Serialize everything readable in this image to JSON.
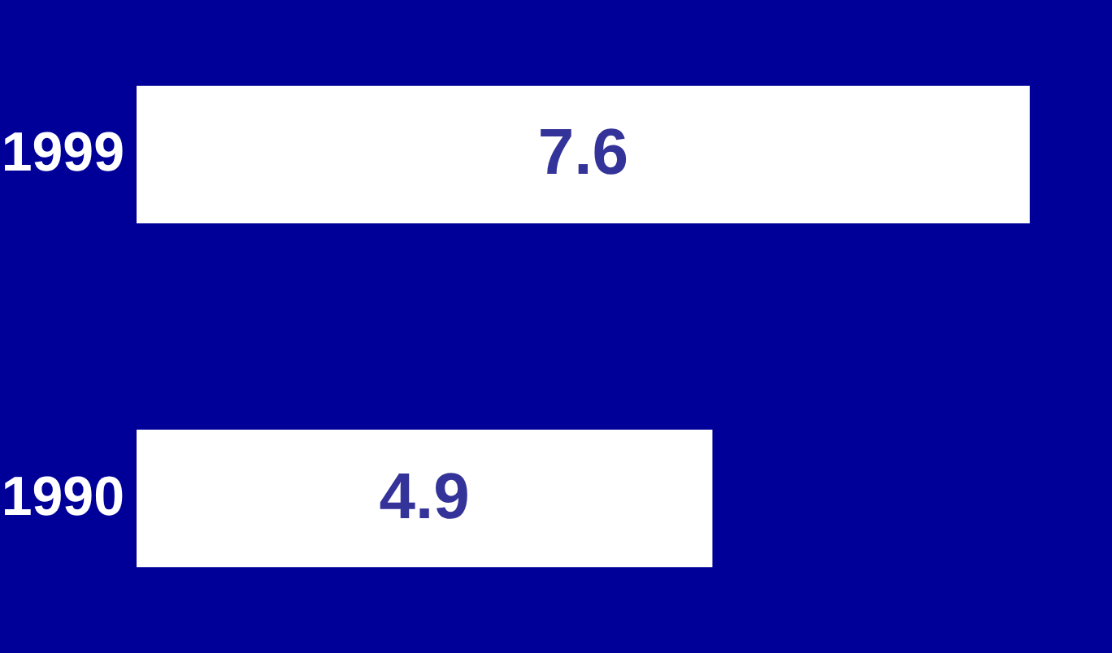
{
  "chart_data": {
    "type": "bar",
    "orientation": "horizontal",
    "categories": [
      "1999",
      "1990"
    ],
    "values": [
      7.6,
      4.9
    ],
    "color": "#ffffff",
    "data_labels": true,
    "xlim": [
      0,
      8.3
    ],
    "tick_labels": "y"
  }
}
